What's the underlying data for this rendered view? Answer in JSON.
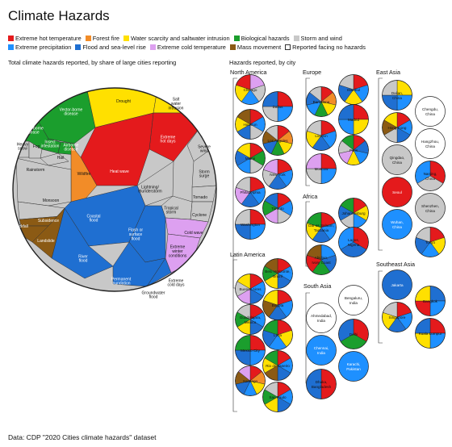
{
  "title": "Climate Hazards",
  "legend": [
    {
      "label": "Extreme hot temperature",
      "color": "#e41a1c"
    },
    {
      "label": "Forest fire",
      "color": "#f28c28"
    },
    {
      "label": "Water scarcity and saltwater intrusion",
      "color": "#ffe000"
    },
    {
      "label": "Biological hazards",
      "color": "#1b9e2d"
    },
    {
      "label": "Storm and wind",
      "color": "#c8c8c8"
    },
    {
      "label": "Extreme precipitation",
      "color": "#1e90ff"
    },
    {
      "label": "Flood and sea-level rise",
      "color": "#1f6fd1"
    },
    {
      "label": "Extreme cold temperature",
      "color": "#dda0f0"
    },
    {
      "label": "Mass movement",
      "color": "#8b5a14"
    },
    {
      "label": "Reported facing no hazards",
      "color": "#ffffff"
    }
  ],
  "left_subtitle": "Total climate hazards reported, by share of large cities reporting",
  "right_subtitle": "Hazards reported, by city",
  "source": "Data: CDP \"2020 Cities climate hazards\" dataset",
  "chart_data": [
    {
      "type": "voronoi treemap",
      "cells": [
        {
          "label": "Vector-borne disease",
          "group": "Biological hazards"
        },
        {
          "label": "Water-borne disease",
          "group": "Biological hazards"
        },
        {
          "label": "Insect infestation",
          "group": "Biological hazards"
        },
        {
          "label": "Airborne disease",
          "group": "Biological hazards"
        },
        {
          "label": "Drought",
          "group": "Water scarcity and saltwater intrusion"
        },
        {
          "label": "Salt water intrusion",
          "group": "Water scarcity and saltwater intrusion"
        },
        {
          "label": "Extreme hot days",
          "group": "Extreme hot temperature"
        },
        {
          "label": "Heat wave",
          "group": "Extreme hot temperature"
        },
        {
          "label": "Wildfire",
          "group": "Forest fire"
        },
        {
          "label": "Heavy snow",
          "group": "Storm and wind"
        },
        {
          "label": "Fog",
          "group": "Storm and wind"
        },
        {
          "label": "Hail",
          "group": "Storm and wind"
        },
        {
          "label": "Rainstorm",
          "group": "Storm and wind"
        },
        {
          "label": "Monsoon",
          "group": "Storm and wind"
        },
        {
          "label": "Lightning/ thunderstorm",
          "group": "Storm and wind"
        },
        {
          "label": "Severe wind",
          "group": "Storm and wind"
        },
        {
          "label": "Storm surge",
          "group": "Storm and wind"
        },
        {
          "label": "Tornado",
          "group": "Storm and wind"
        },
        {
          "label": "Cyclone",
          "group": "Storm and wind"
        },
        {
          "label": "Tropical storm",
          "group": "Storm and wind"
        },
        {
          "label": "Coastal flood",
          "group": "Flood and sea-level rise"
        },
        {
          "label": "River flood",
          "group": "Flood and sea-level rise"
        },
        {
          "label": "Flash or surface flood",
          "group": "Flood and sea-level rise"
        },
        {
          "label": "Permanent inundation",
          "group": "Flood and sea-level rise"
        },
        {
          "label": "Groundwater flood",
          "group": "Flood and sea-level rise"
        },
        {
          "label": "Cold wave",
          "group": "Extreme cold temperature"
        },
        {
          "label": "Extreme winter conditions",
          "group": "Extreme cold temperature"
        },
        {
          "label": "Extreme cold days",
          "group": "Extreme cold temperature"
        },
        {
          "label": "Subsidence",
          "group": "Mass movement"
        },
        {
          "label": "Rockfall",
          "group": "Mass movement"
        },
        {
          "label": "Landslide",
          "group": "Mass movement"
        }
      ]
    },
    {
      "type": "pie",
      "regions": [
        {
          "name": "North America",
          "cities": [
            {
              "name": "Chicago",
              "slices": [
                "#dda0f0",
                "#c8c8c8",
                "#1e90ff",
                "#ffe000",
                "#e41a1c"
              ]
            },
            {
              "name": "Dallas",
              "slices": [
                "#e41a1c",
                "#1e90ff",
                "#c8c8c8",
                "#1f6fd1"
              ]
            },
            {
              "name": "Houston",
              "slices": [
                "#e41a1c",
                "#1e90ff",
                "#c8c8c8",
                "#1f6fd1",
                "#ffe000",
                "#8b5a14"
              ]
            },
            {
              "name": "Los Angeles",
              "slices": [
                "#e41a1c",
                "#f28c28",
                "#ffe000",
                "#1b9e2d",
                "#1f6fd1",
                "#8b5a14",
                "#c8c8c8"
              ]
            },
            {
              "name": "Miami",
              "slices": [
                "#e41a1c",
                "#1b9e2d",
                "#c8c8c8",
                "#1e90ff",
                "#1f6fd1",
                "#ffe000"
              ]
            },
            {
              "name": "New York",
              "slices": [
                "#e41a1c",
                "#1e90ff",
                "#1f6fd1",
                "#c8c8c8",
                "#dda0f0"
              ]
            },
            {
              "name": "Philadelphia",
              "slices": [
                "#e41a1c",
                "#1e90ff",
                "#1f6fd1",
                "#dda0f0",
                "#c8c8c8"
              ]
            },
            {
              "name": "Toronto",
              "slices": [
                "#e41a1c",
                "#1e90ff",
                "#c8c8c8",
                "#dda0f0",
                "#1b9e2d",
                "#1f6fd1"
              ]
            },
            {
              "name": "Washington",
              "slices": [
                "#e41a1c",
                "#1e90ff",
                "#1f6fd1",
                "#c8c8c8"
              ]
            }
          ]
        },
        {
          "name": "Europe",
          "cities": [
            {
              "name": "Istanbul",
              "slices": [
                "#e41a1c",
                "#1e90ff",
                "#ffe000",
                "#1f6fd1",
                "#c8c8c8"
              ]
            },
            {
              "name": "Barcelona",
              "slices": [
                "#e41a1c",
                "#f28c28",
                "#ffe000",
                "#1b9e2d",
                "#1e90ff",
                "#1f6fd1",
                "#c8c8c8"
              ]
            },
            {
              "name": "Madrid",
              "slices": [
                "#e41a1c",
                "#ffe000",
                "#1e90ff",
                "#1f6fd1"
              ]
            },
            {
              "name": "London",
              "slices": [
                "#e41a1c",
                "#1e90ff",
                "#1f6fd1",
                "#ffe000",
                "#c8c8c8"
              ]
            },
            {
              "name": "Paris",
              "slices": [
                "#e41a1c",
                "#1f6fd1",
                "#1e90ff",
                "#ffe000",
                "#dda0f0",
                "#c8c8c8",
                "#1b9e2d"
              ]
            },
            {
              "name": "Moscow",
              "slices": [
                "#e41a1c",
                "#1e90ff",
                "#c8c8c8",
                "#dda0f0"
              ]
            }
          ]
        },
        {
          "name": "Africa",
          "cities": [
            {
              "name": "Johannesburg",
              "slices": [
                "#e41a1c",
                "#ffe000",
                "#1e90ff",
                "#c8c8c8",
                "#1f6fd1",
                "#1b9e2d"
              ]
            },
            {
              "name": "Dar es Salaam, Tanzania",
              "slices": [
                "#e41a1c",
                "#1e90ff",
                "#1f6fd1",
                "#ffe000",
                "#1b9e2d"
              ]
            },
            {
              "name": "Lagos, Nigeria",
              "slices": [
                "#e41a1c",
                "#1f6fd1",
                "#1e90ff"
              ]
            },
            {
              "name": "Abidjan, Ivory Coast",
              "slices": [
                "#1e90ff",
                "#1f6fd1",
                "#1b9e2d",
                "#e41a1c",
                "#8b5a14"
              ]
            }
          ]
        },
        {
          "name": "East Asia",
          "cities": [
            {
              "name": "Dalian, China",
              "slices": [
                "#ffe000",
                "#1e90ff",
                "#1f6fd1",
                "#c8c8c8"
              ]
            },
            {
              "name": "Chengdu, China",
              "slices": []
            },
            {
              "name": "Hong Kong",
              "slices": [
                "#e41a1c",
                "#1e90ff",
                "#1f6fd1",
                "#c8c8c8",
                "#8b5a14",
                "#ffe000"
              ]
            },
            {
              "name": "Hangzhou, China",
              "slices": []
            },
            {
              "name": "Qingdao, China",
              "slices": [
                "#c8c8c8"
              ]
            },
            {
              "name": "Nanjing, China",
              "slices": [
                "#e41a1c",
                "#c8c8c8",
                "#1e90ff"
              ]
            },
            {
              "name": "Seoul",
              "slices": [
                "#e41a1c"
              ]
            },
            {
              "name": "Shenzhen, China",
              "slices": [
                "#c8c8c8"
              ]
            },
            {
              "name": "Wuhan, China",
              "slices": [
                "#1e90ff"
              ]
            },
            {
              "name": "Tokyo",
              "slices": [
                "#e41a1c",
                "#ffe000",
                "#1e90ff",
                "#1f6fd1",
                "#c8c8c8"
              ]
            }
          ]
        },
        {
          "name": "Latin America",
          "cities": [
            {
              "name": "Belo Horizonte, Brazil",
              "slices": [
                "#e41a1c",
                "#1e90ff",
                "#1f6fd1",
                "#ffe000",
                "#1b9e2d",
                "#8b5a14"
              ]
            },
            {
              "name": "Buenos Aires",
              "slices": [
                "#e41a1c",
                "#1e90ff",
                "#1f6fd1",
                "#dda0f0",
                "#c8c8c8",
                "#ffe000"
              ]
            },
            {
              "name": "Bogota",
              "slices": [
                "#e41a1c",
                "#1e90ff",
                "#1f6fd1",
                "#8b5a14",
                "#ffe000"
              ]
            },
            {
              "name": "Guadalajara, Mexico",
              "slices": [
                "#e41a1c",
                "#1e90ff",
                "#1f6fd1",
                "#ffe000",
                "#1b9e2d",
                "#c8c8c8"
              ]
            },
            {
              "name": "Lima",
              "slices": [
                "#e41a1c",
                "#ffe000",
                "#1e90ff",
                "#1f6fd1",
                "#1b9e2d"
              ]
            },
            {
              "name": "Mexico City",
              "slices": [
                "#e41a1c",
                "#1e90ff",
                "#1f6fd1",
                "#1b9e2d"
              ]
            },
            {
              "name": "Rio de Janeiro",
              "slices": [
                "#e41a1c",
                "#1e90ff",
                "#1f6fd1",
                "#8b5a14",
                "#ffe000",
                "#1b9e2d"
              ]
            },
            {
              "name": "Santiago",
              "slices": [
                "#e41a1c",
                "#f28c28",
                "#ffe000",
                "#1e90ff",
                "#1f6fd1",
                "#8b5a14",
                "#dda0f0"
              ]
            },
            {
              "name": "Sao Paulo",
              "slices": [
                "#e41a1c",
                "#1e90ff",
                "#1f6fd1",
                "#ffe000",
                "#1b9e2d",
                "#c8c8c8"
              ]
            }
          ]
        },
        {
          "name": "South Asia",
          "cities": [
            {
              "name": "Bengaluru, India",
              "slices": []
            },
            {
              "name": "Ahmedabad, India",
              "slices": []
            },
            {
              "name": "Delhi",
              "slices": [
                "#e41a1c",
                "#1b9e2d",
                "#1f6fd1"
              ]
            },
            {
              "name": "Chennai, India",
              "slices": [
                "#1e90ff"
              ]
            },
            {
              "name": "Karachi, Pakistan",
              "slices": [
                "#1e90ff"
              ]
            },
            {
              "name": "Dhaka, Bangladesh",
              "slices": [
                "#e41a1c",
                "#1f6fd1"
              ]
            }
          ]
        },
        {
          "name": "Southeast Asia",
          "cities": [
            {
              "name": "Jakarta",
              "slices": [
                "#1f6fd1"
              ]
            },
            {
              "name": "Bangkok",
              "slices": [
                "#1f6fd1",
                "#1e90ff",
                "#e41a1c",
                "#ffe000"
              ]
            },
            {
              "name": "Singapore",
              "slices": [
                "#e41a1c",
                "#1e90ff",
                "#1f6fd1",
                "#ffe000",
                "#c8c8c8"
              ]
            },
            {
              "name": "Kuala Lumpur",
              "slices": [
                "#e41a1c",
                "#1e90ff",
                "#ffe000",
                "#1f6fd1"
              ]
            }
          ]
        }
      ]
    }
  ]
}
